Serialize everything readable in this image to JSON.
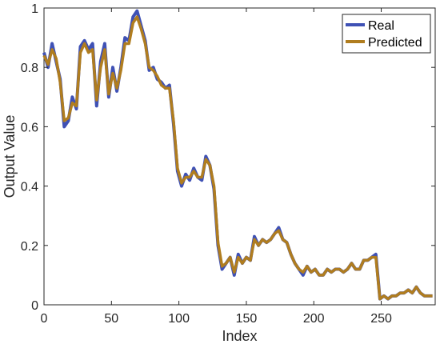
{
  "chart_data": {
    "type": "line",
    "title": "",
    "xlabel": "Index",
    "ylabel": "Output Value",
    "xlim": [
      0,
      290
    ],
    "ylim": [
      0,
      1
    ],
    "xticks": [
      0,
      50,
      100,
      150,
      200,
      250
    ],
    "xtick_labels": [
      "0",
      "50",
      "100",
      "150",
      "200",
      "250"
    ],
    "yticks": [
      0,
      0.2,
      0.4,
      0.6,
      0.8,
      1
    ],
    "ytick_labels": [
      "0",
      "0.2",
      "0.4",
      "0.6",
      "0.8",
      "1"
    ],
    "grid": false,
    "legend_position": "top-right",
    "series": [
      {
        "name": "Real",
        "color": "#3f51b5",
        "x": [
          0,
          3,
          6,
          9,
          12,
          15,
          18,
          21,
          24,
          27,
          30,
          33,
          36,
          39,
          42,
          45,
          48,
          51,
          54,
          57,
          60,
          63,
          66,
          69,
          72,
          75,
          78,
          81,
          84,
          87,
          90,
          93,
          96,
          99,
          102,
          105,
          108,
          111,
          114,
          117,
          120,
          123,
          126,
          129,
          132,
          135,
          138,
          141,
          144,
          147,
          150,
          153,
          156,
          159,
          162,
          165,
          168,
          171,
          174,
          177,
          180,
          183,
          186,
          189,
          192,
          195,
          198,
          201,
          204,
          207,
          210,
          213,
          216,
          219,
          222,
          225,
          228,
          231,
          234,
          237,
          240,
          243,
          246,
          249,
          252,
          255,
          258,
          261,
          264,
          267,
          270,
          273,
          276,
          279,
          282,
          285,
          288
        ],
        "y": [
          0.85,
          0.8,
          0.88,
          0.82,
          0.76,
          0.6,
          0.62,
          0.7,
          0.66,
          0.87,
          0.89,
          0.86,
          0.88,
          0.67,
          0.82,
          0.88,
          0.7,
          0.8,
          0.72,
          0.8,
          0.9,
          0.89,
          0.97,
          0.99,
          0.94,
          0.89,
          0.79,
          0.8,
          0.76,
          0.75,
          0.73,
          0.74,
          0.61,
          0.45,
          0.4,
          0.44,
          0.42,
          0.46,
          0.43,
          0.42,
          0.5,
          0.47,
          0.39,
          0.2,
          0.12,
          0.14,
          0.16,
          0.1,
          0.17,
          0.14,
          0.16,
          0.15,
          0.23,
          0.2,
          0.22,
          0.21,
          0.22,
          0.24,
          0.26,
          0.22,
          0.21,
          0.17,
          0.14,
          0.12,
          0.1,
          0.13,
          0.11,
          0.12,
          0.1,
          0.1,
          0.12,
          0.11,
          0.12,
          0.12,
          0.11,
          0.12,
          0.14,
          0.12,
          0.12,
          0.15,
          0.15,
          0.16,
          0.17,
          0.02,
          0.03,
          0.02,
          0.03,
          0.03,
          0.04,
          0.04,
          0.05,
          0.04,
          0.06,
          0.04,
          0.03,
          0.03,
          0.03
        ]
      },
      {
        "name": "Predicted",
        "color": "#b07d1f",
        "x": [
          0,
          3,
          6,
          9,
          12,
          15,
          18,
          21,
          24,
          27,
          30,
          33,
          36,
          39,
          42,
          45,
          48,
          51,
          54,
          57,
          60,
          63,
          66,
          69,
          72,
          75,
          78,
          81,
          84,
          87,
          90,
          93,
          96,
          99,
          102,
          105,
          108,
          111,
          114,
          117,
          120,
          123,
          126,
          129,
          132,
          135,
          138,
          141,
          144,
          147,
          150,
          153,
          156,
          159,
          162,
          165,
          168,
          171,
          174,
          177,
          180,
          183,
          186,
          189,
          192,
          195,
          198,
          201,
          204,
          207,
          210,
          213,
          216,
          219,
          222,
          225,
          228,
          231,
          234,
          237,
          240,
          243,
          246,
          249,
          252,
          255,
          258,
          261,
          264,
          267,
          270,
          273,
          276,
          279,
          282,
          285,
          288
        ],
        "y": [
          0.84,
          0.81,
          0.86,
          0.83,
          0.75,
          0.62,
          0.63,
          0.68,
          0.67,
          0.85,
          0.88,
          0.85,
          0.86,
          0.69,
          0.8,
          0.86,
          0.71,
          0.78,
          0.73,
          0.79,
          0.88,
          0.88,
          0.95,
          0.97,
          0.93,
          0.88,
          0.8,
          0.79,
          0.77,
          0.74,
          0.73,
          0.73,
          0.62,
          0.46,
          0.41,
          0.43,
          0.43,
          0.45,
          0.43,
          0.43,
          0.49,
          0.47,
          0.4,
          0.21,
          0.13,
          0.14,
          0.16,
          0.11,
          0.16,
          0.14,
          0.16,
          0.15,
          0.22,
          0.2,
          0.22,
          0.21,
          0.22,
          0.24,
          0.25,
          0.22,
          0.21,
          0.17,
          0.14,
          0.12,
          0.11,
          0.13,
          0.11,
          0.12,
          0.1,
          0.1,
          0.12,
          0.11,
          0.12,
          0.12,
          0.11,
          0.12,
          0.14,
          0.12,
          0.12,
          0.15,
          0.15,
          0.16,
          0.16,
          0.02,
          0.03,
          0.02,
          0.03,
          0.03,
          0.04,
          0.04,
          0.05,
          0.04,
          0.06,
          0.04,
          0.03,
          0.03,
          0.03
        ]
      }
    ]
  }
}
